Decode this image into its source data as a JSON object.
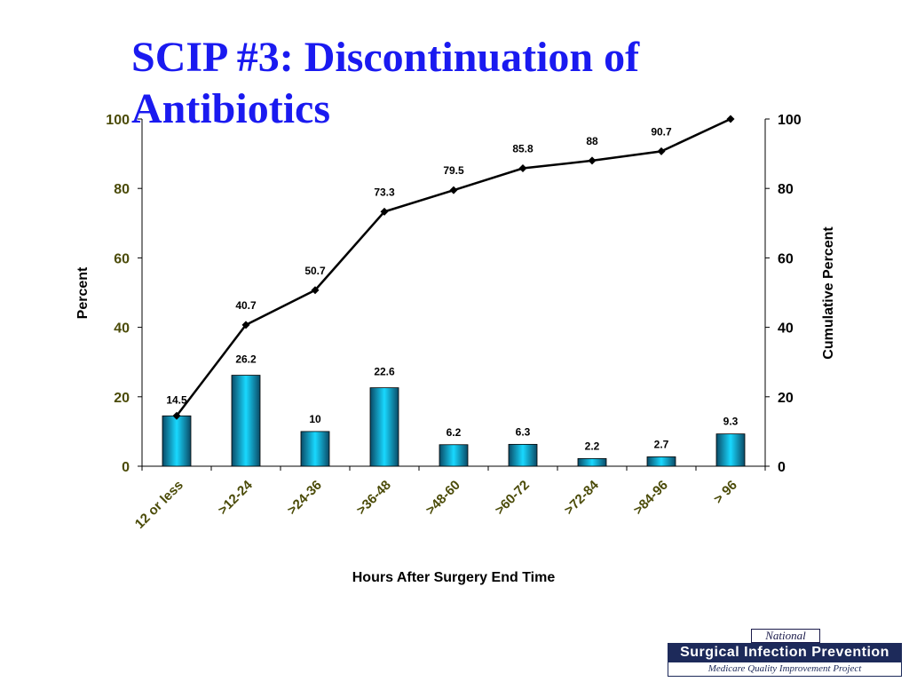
{
  "slide": {
    "title": "SCIP #3: Discontinuation of Antibiotics"
  },
  "logo": {
    "top": "National",
    "main": "Surgical Infection Prevention",
    "sub": "Medicare Quality Improvement Project"
  },
  "colors": {
    "title": "#1a1af0",
    "bar_center": "#18d8ff",
    "bar_edge": "#0a4a66",
    "line": "#000000",
    "tick_label": "#4b4b08",
    "logo_bg": "#1d2a5a"
  },
  "chart_data": {
    "type": "bar",
    "title": "",
    "xlabel": "Hours After Surgery End Time",
    "ylabel": "Percent",
    "y2label": "Cumulative Percent",
    "ylim": [
      0,
      100
    ],
    "y2lim": [
      0,
      100
    ],
    "yticks": [
      0,
      20,
      40,
      60,
      80,
      100
    ],
    "y2ticks": [
      0,
      20,
      40,
      60,
      80,
      100
    ],
    "grid": false,
    "legend": "none",
    "categories": [
      "12 or less",
      ">12-24",
      ">24-36",
      ">36-48",
      ">48-60",
      ">60-72",
      ">72-84",
      ">84-96",
      "> 96"
    ],
    "series": [
      {
        "type": "bar",
        "axis": "left",
        "values": [
          14.5,
          26.2,
          10,
          22.6,
          6.2,
          6.3,
          2.2,
          2.7,
          9.3
        ],
        "labels": [
          "14.5",
          "26.2",
          "10",
          "22.6",
          "6.2",
          "6.3",
          "2.2",
          "2.7",
          "9.3"
        ]
      },
      {
        "type": "line",
        "axis": "right",
        "marker": "diamond",
        "values": [
          14.5,
          40.7,
          50.7,
          73.3,
          79.5,
          85.8,
          88,
          90.7,
          100
        ],
        "labels": [
          "",
          "40.7",
          "50.7",
          "73.3",
          "79.5",
          "85.8",
          "88",
          "90.7",
          ""
        ]
      }
    ]
  }
}
